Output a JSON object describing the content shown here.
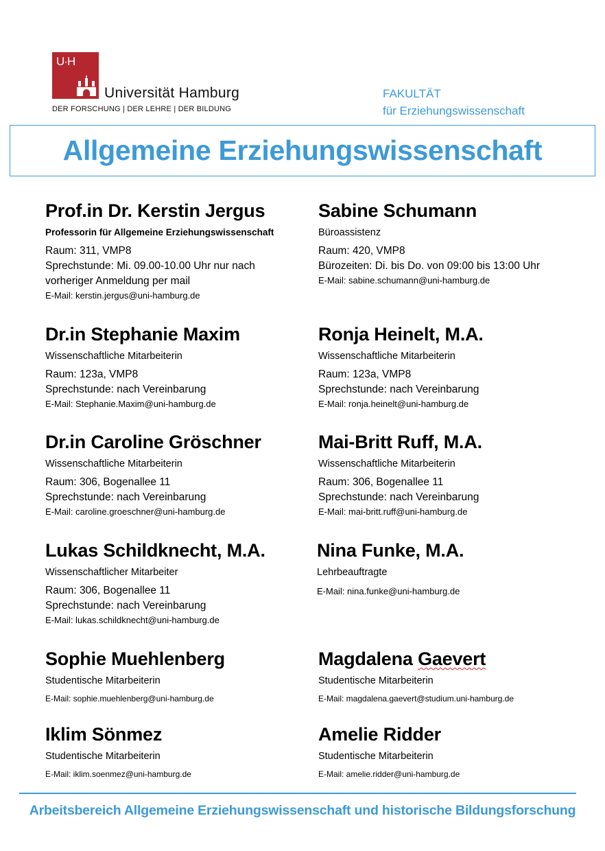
{
  "logo": {
    "mark": "UHH",
    "name": "Universität Hamburg",
    "tagline": "DER FORSCHUNG | DER LEHRE | DER BILDUNG",
    "color": "#b5272f"
  },
  "faculty": {
    "line1": "FAKULTÄT",
    "line2": "für Erziehungswissenschaft"
  },
  "title": "Allgemeine Erziehungswissenschaft",
  "accent_color": "#3d9ad6",
  "people": [
    {
      "name": "Prof.in Dr. Kerstin Jergus",
      "role": "Professorin für Allgemeine Erziehungswissenschaft",
      "role_bold": true,
      "lines": [
        "Raum: 311, VMP8",
        "Sprechstunde: Mi. 09.00-10.00 Uhr nur nach",
        "vorheriger Anmeldung per mail"
      ],
      "email": "E-Mail: kerstin.jergus@uni-hamburg.de"
    },
    {
      "name": "Sabine Schumann",
      "role": "Büroassistenz",
      "lines": [
        "Raum: 420, VMP8",
        "Bürozeiten: Di. bis Do. von 09:00 bis 13:00 Uhr"
      ],
      "email": "E-Mail: sabine.schumann@uni-hamburg.de"
    },
    {
      "name": "Dr.in Stephanie Maxim",
      "role": "Wissenschaftliche Mitarbeiterin",
      "lines": [
        "Raum: 123a, VMP8",
        "Sprechstunde: nach Vereinbarung"
      ],
      "email": "E-Mail: Stephanie.Maxim@uni-hamburg.de"
    },
    {
      "name": "Ronja Heinelt, M.A.",
      "role": "Wissenschaftliche Mitarbeiterin",
      "lines": [
        "Raum: 123a, VMP8",
        "Sprechstunde: nach Vereinbarung"
      ],
      "email": "E-Mail: ronja.heinelt@uni-hamburg.de"
    },
    {
      "name": "Dr.in Caroline Gröschner",
      "role": "Wissenschaftliche Mitarbeiterin",
      "lines": [
        "Raum: 306, Bogenallee 11",
        "Sprechstunde: nach Vereinbarung"
      ],
      "email": "E-Mail: caroline.groeschner@uni-hamburg.de"
    },
    {
      "name": "Mai-Britt Ruff, M.A.",
      "role": "Wissenschaftliche Mitarbeiterin",
      "lines": [
        "Raum: 306, Bogenallee 11",
        "Sprechstunde: nach Vereinbarung"
      ],
      "email": "E-Mail: mai-britt.ruff@uni-hamburg.de"
    },
    {
      "name": "Lukas Schildknecht, M.A.",
      "role": "Wissenschaftlicher Mitarbeiter",
      "lines": [
        "Raum: 306, Bogenallee 11",
        "Sprechstunde: nach Vereinbarung"
      ],
      "email": "E-Mail: lukas.schildknecht@uni-hamburg.de"
    },
    {
      "name": "Nina Funke, M.A.",
      "role": "Lehrbeauftragte",
      "lines": [],
      "email": "E-Mail: nina.funke@uni-hamburg.de"
    },
    {
      "name": "Sophie Muehlenberg",
      "role": "Studentische Mitarbeiterin",
      "lines": [],
      "email": "E-Mail: sophie.muehlenberg@uni-hamburg.de"
    },
    {
      "name_first": "Magdalena",
      "name_last": "Gaevert",
      "role": "Studentische Mitarbeiterin",
      "lines": [],
      "email": "E-Mail: magdalena.gaevert@studium.uni-hamburg.de"
    },
    {
      "name": "Iklim Sönmez",
      "role": "Studentische Mitarbeiterin",
      "lines": [],
      "email": "E-Mail: iklim.soenmez@uni-hamburg.de"
    },
    {
      "name": "Amelie Ridder",
      "role": "Studentische Mitarbeiterin",
      "lines": [],
      "email": "E-Mail: amelie.ridder@uni-hamburg.de"
    }
  ],
  "footer": "Arbeitsbereich Allgemeine Erziehungswissenschaft und historische Bildungsforschung"
}
